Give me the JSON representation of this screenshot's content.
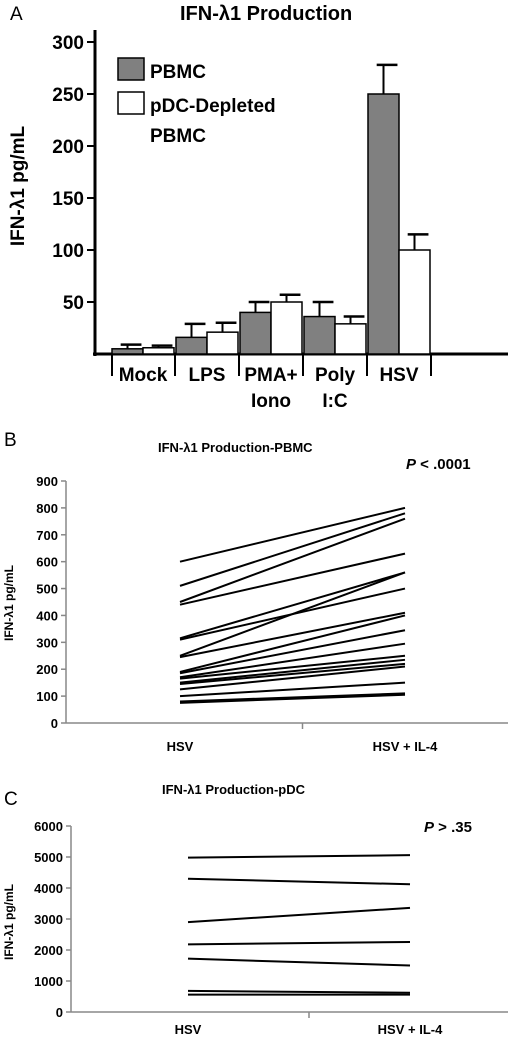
{
  "chart_data": [
    {
      "panel_label": "A",
      "type": "bar",
      "title": "IFN-λ1 Production",
      "ylabel": "IFN-λ1 pg/mL",
      "xlabel": "",
      "ylim": [
        0,
        300
      ],
      "yticks": [
        50,
        100,
        150,
        200,
        250,
        300
      ],
      "categories": [
        [
          "Mock"
        ],
        [
          "LPS"
        ],
        [
          "PMA+",
          "Iono"
        ],
        [
          "Poly",
          "I:C"
        ],
        [
          "HSV"
        ]
      ],
      "series": [
        {
          "name": "PBMC",
          "color": "#808080",
          "values": [
            5,
            16,
            40,
            36,
            250
          ],
          "errors": [
            4,
            13,
            10,
            14,
            28
          ]
        },
        {
          "name": "pDC-Depleted PBMC",
          "name_lines": [
            "pDC-Depleted",
            "PBMC"
          ],
          "color": "#ffffff",
          "values": [
            6,
            21,
            50,
            29,
            100
          ],
          "errors": [
            2,
            9,
            7,
            7,
            15
          ]
        }
      ],
      "legend": "top-left",
      "grid": false
    },
    {
      "panel_label": "B",
      "type": "line",
      "title": "IFN-λ1 Production-PBMC",
      "ylabel": "IFN-λ1 pg/mL",
      "xlabel": "",
      "annotation": {
        "italic": "P",
        "rest": " < .0001"
      },
      "ylim": [
        0,
        900
      ],
      "yticks": [
        0,
        100,
        200,
        300,
        400,
        500,
        600,
        700,
        800,
        900
      ],
      "x": [
        "HSV",
        "HSV + IL-4"
      ],
      "pairs": [
        [
          600,
          800
        ],
        [
          510,
          780
        ],
        [
          450,
          760
        ],
        [
          440,
          630
        ],
        [
          315,
          560
        ],
        [
          310,
          500
        ],
        [
          250,
          560
        ],
        [
          245,
          410
        ],
        [
          190,
          400
        ],
        [
          185,
          345
        ],
        [
          170,
          295
        ],
        [
          165,
          250
        ],
        [
          150,
          235
        ],
        [
          145,
          220
        ],
        [
          125,
          210
        ],
        [
          100,
          150
        ],
        [
          80,
          110
        ],
        [
          75,
          105
        ]
      ],
      "grid": false
    },
    {
      "panel_label": "C",
      "type": "line",
      "title": "IFN-λ1 Production-pDC",
      "ylabel": "IFN-λ1 pg/mL",
      "xlabel": "",
      "annotation": {
        "italic": "P",
        "rest": " > .35"
      },
      "ylim": [
        0,
        6000
      ],
      "yticks": [
        0,
        1000,
        2000,
        3000,
        4000,
        5000,
        6000
      ],
      "x": [
        "HSV",
        "HSV + IL-4"
      ],
      "pairs": [
        [
          4980,
          5060
        ],
        [
          4300,
          4120
        ],
        [
          2900,
          3360
        ],
        [
          2180,
          2260
        ],
        [
          1720,
          1500
        ],
        [
          680,
          620
        ],
        [
          560,
          560
        ]
      ],
      "grid": false
    }
  ]
}
